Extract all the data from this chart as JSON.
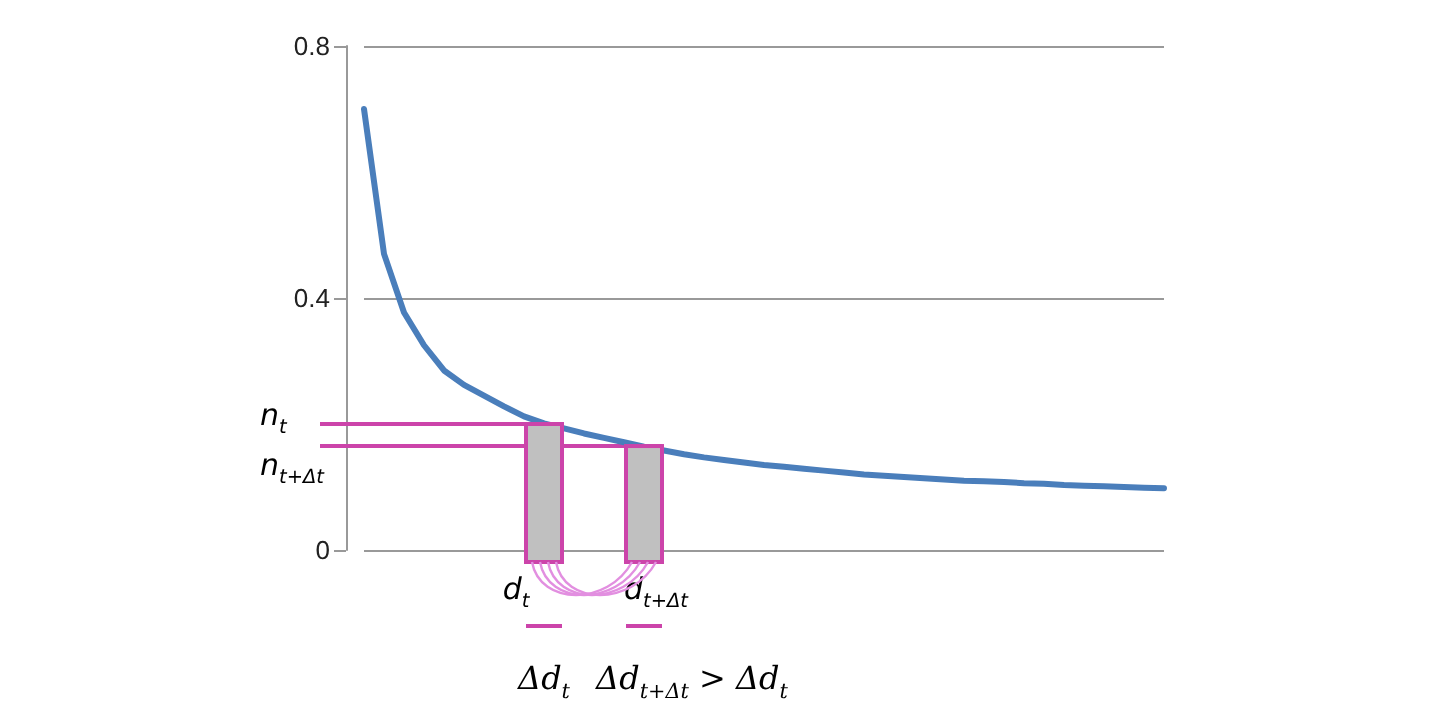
{
  "chart_data": {
    "type": "line",
    "categories": [
      null,
      null,
      null,
      null,
      null,
      null,
      null,
      null,
      null,
      null,
      null,
      null,
      null,
      null,
      null,
      null,
      null,
      null,
      null,
      null,
      null,
      null,
      null,
      null,
      null,
      null,
      null,
      null,
      null,
      null,
      null,
      null,
      null,
      null,
      null,
      null,
      null,
      null,
      null,
      null,
      null
    ],
    "values": [
      0.7,
      0.47,
      0.377,
      0.325,
      0.285,
      0.262,
      0.245,
      0.228,
      0.212,
      0.201,
      0.193,
      0.185,
      0.178,
      0.171,
      0.164,
      0.158,
      0.152,
      0.147,
      0.143,
      0.139,
      0.135,
      0.132,
      0.129,
      0.126,
      0.123,
      0.12,
      0.118,
      0.116,
      0.114,
      0.112,
      0.11,
      0.109,
      0.108,
      0.106,
      0.105,
      0.103,
      0.102,
      0.101,
      0.1,
      0.099,
      0.098
    ],
    "color": "#4a7ebb",
    "ylim": [
      0,
      0.8
    ],
    "yticks": [
      0,
      0.4,
      0.8
    ],
    "tick_labels": "y",
    "grid": "y",
    "marker": "none",
    "line_style": "solid",
    "ref_lines": [
      {
        "axis": "y",
        "value": 0.2,
        "label": "n$_{t}$",
        "color": "#cc44aa"
      },
      {
        "axis": "y",
        "value": 0.165,
        "label": "n$_{t+Δt}$",
        "color": "#cc44aa"
      }
    ],
    "annotations": [
      "d$_{t}$",
      "d$_{t+Δt}$",
      "Δd$_{t}$",
      "Δd$_{t+Δt}$ > Δd$_{t}$"
    ]
  }
}
